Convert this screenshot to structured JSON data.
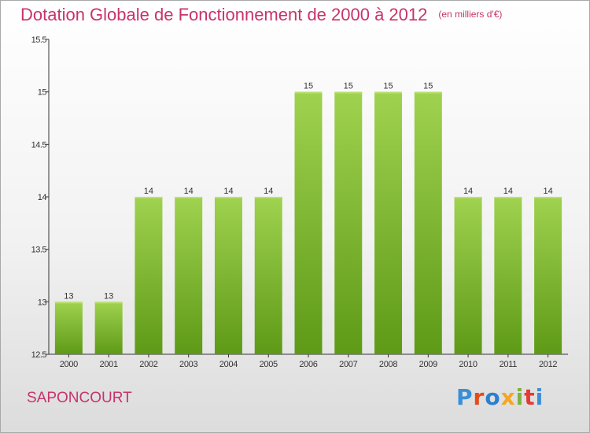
{
  "header": {
    "title": "Dotation Globale de Fonctionnement de 2000 à 2012",
    "unit": "(en milliers d'€)"
  },
  "footer": {
    "commune": "SAPONCOURT",
    "logo_text": "Proxiti"
  },
  "colors": {
    "accent": "#c8336b",
    "bar_top": "#9fd24f",
    "bar_bottom": "#5e9a17",
    "logo": [
      "#3a8fd6",
      "#e64a19",
      "#2b7fd0",
      "#f5a623",
      "#7cb342",
      "#e53935",
      "#3a8fd6"
    ]
  },
  "chart_data": {
    "type": "bar",
    "categories": [
      "2000",
      "2001",
      "2002",
      "2003",
      "2004",
      "2005",
      "2006",
      "2007",
      "2008",
      "2009",
      "2010",
      "2011",
      "2012"
    ],
    "values": [
      13,
      13,
      14,
      14,
      14,
      14,
      15,
      15,
      15,
      15,
      14,
      14,
      14
    ],
    "data_labels": [
      "13",
      "13",
      "14",
      "14",
      "14",
      "14",
      "15",
      "15",
      "15",
      "15",
      "14",
      "14",
      "14"
    ],
    "ylim": [
      12.5,
      15.5
    ],
    "yticks": [
      12.5,
      13,
      13.5,
      14,
      14.5,
      15,
      15.5
    ],
    "ytick_labels": [
      "12.5",
      "13",
      "13.5",
      "14",
      "14.5",
      "15",
      "15.5"
    ],
    "grid": false,
    "legend": "none"
  }
}
